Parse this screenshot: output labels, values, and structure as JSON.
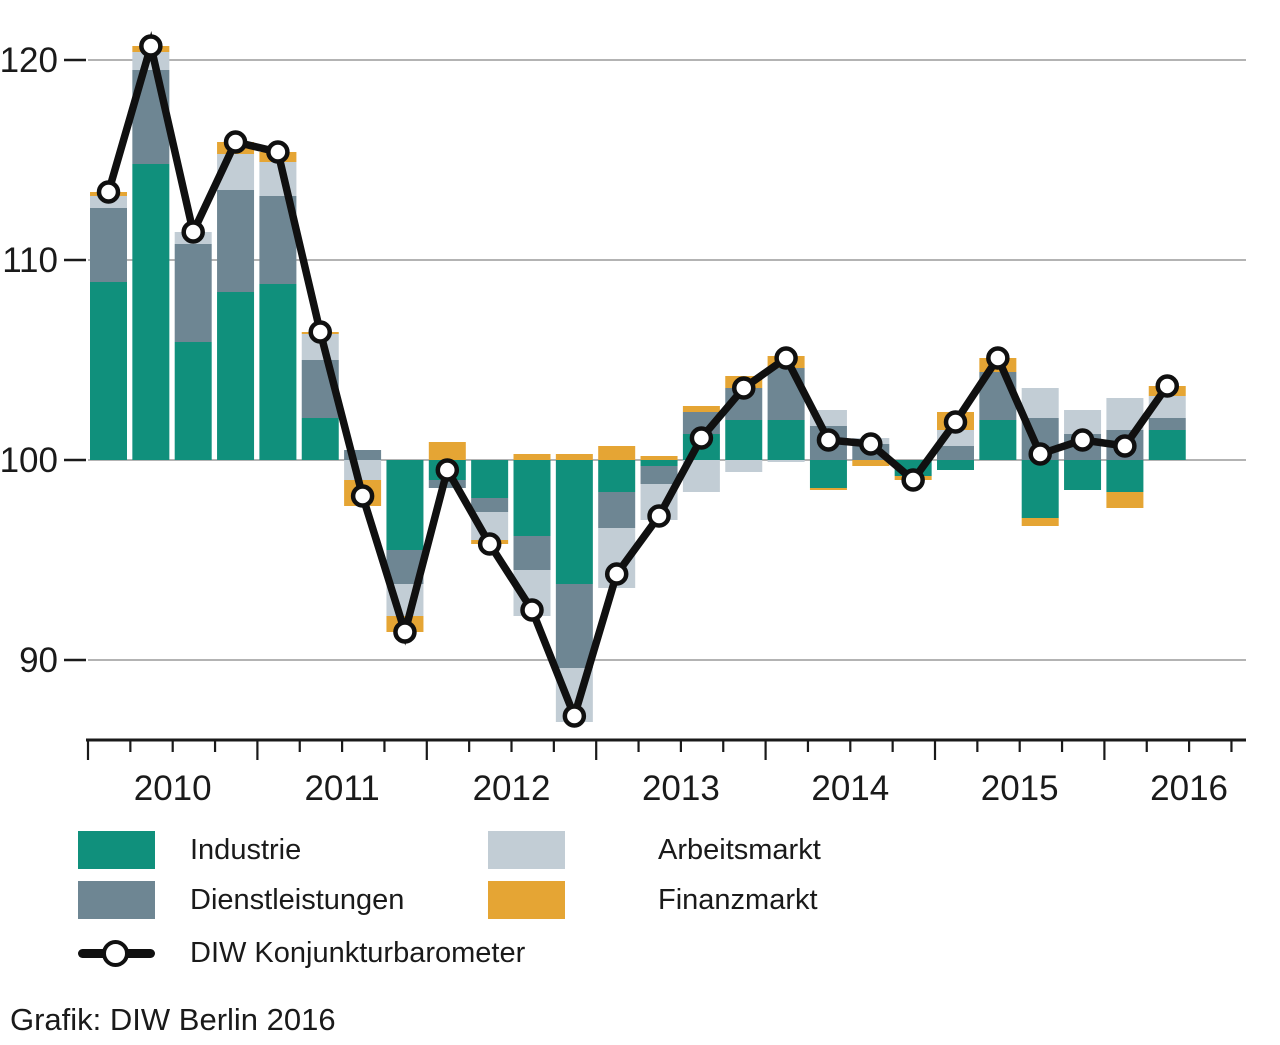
{
  "caption": "Grafik: DIW Berlin 2016",
  "colors": {
    "industrie": "#10907C",
    "dienstleistungen": "#6E8693",
    "arbeitsmarkt": "#C2CDD5",
    "finanzmarkt": "#E5A534",
    "line": "#101010",
    "gridline": "#9a9a9a",
    "axis": "#1a1a1a",
    "text": "#1a1a1a"
  },
  "legend": {
    "items": [
      {
        "label": "Industrie",
        "swatch": "industrie"
      },
      {
        "label": "Dienstleistungen",
        "swatch": "dienstleistungen"
      },
      {
        "label": "Arbeitsmarkt",
        "swatch": "arbeitsmarkt"
      },
      {
        "label": "Finanzmarkt",
        "swatch": "finanzmarkt"
      },
      {
        "label": "DIW Konjunkturbarometer",
        "swatch": "line-marker"
      }
    ]
  },
  "chart_data": {
    "type": "bar",
    "subtype": "stacked contribution bars around baseline 100 with overlaid line+markers",
    "baseline": 100,
    "ylim": [
      86,
      122
    ],
    "y_ticks": [
      90,
      100,
      110,
      120
    ],
    "x_tick_labels": [
      "2010",
      "2011",
      "2012",
      "2013",
      "2014",
      "2015",
      "2016"
    ],
    "grid": "horizontal gridlines at y ticks",
    "legend_position": "below chart, two columns",
    "categories": [
      "2010Q1",
      "2010Q2",
      "2010Q3",
      "2010Q4",
      "2011Q1",
      "2011Q2",
      "2011Q3",
      "2011Q4",
      "2012Q1",
      "2012Q2",
      "2012Q3",
      "2012Q4",
      "2013Q1",
      "2013Q2",
      "2013Q3",
      "2013Q4",
      "2014Q1",
      "2014Q2",
      "2014Q3",
      "2014Q4",
      "2015Q1",
      "2015Q2",
      "2015Q3",
      "2015Q4",
      "2016Q1",
      "2016Q2"
    ],
    "series": [
      {
        "name": "Industrie",
        "color_key": "industrie",
        "values": [
          8.9,
          14.8,
          5.9,
          8.4,
          8.8,
          2.1,
          0.0,
          -4.5,
          -1.0,
          -1.9,
          -3.8,
          -6.2,
          -1.6,
          -0.3,
          1.3,
          2.0,
          2.0,
          -1.4,
          0.0,
          -0.8,
          -0.5,
          2.0,
          -2.9,
          -1.5,
          -1.6,
          1.5
        ]
      },
      {
        "name": "Dienstleistungen",
        "color_key": "dienstleistungen",
        "values": [
          3.7,
          4.7,
          4.9,
          5.1,
          4.4,
          2.9,
          0.5,
          -1.7,
          -0.4,
          -0.7,
          -1.7,
          -4.2,
          -1.8,
          -0.9,
          1.1,
          1.6,
          2.6,
          1.7,
          0.8,
          0.0,
          0.7,
          2.4,
          2.1,
          1.3,
          1.5,
          0.6
        ]
      },
      {
        "name": "Arbeitsmarkt",
        "color_key": "arbeitsmarkt",
        "values": [
          0.6,
          0.9,
          0.6,
          1.8,
          1.7,
          1.3,
          -1.0,
          -1.6,
          0.0,
          -1.4,
          -2.3,
          -2.7,
          -3.0,
          -1.8,
          -1.6,
          -0.6,
          -0.1,
          0.8,
          0.3,
          0.0,
          0.8,
          0.0,
          1.5,
          1.2,
          1.6,
          1.1
        ]
      },
      {
        "name": "Finanzmarkt",
        "color_key": "finanzmarkt",
        "values": [
          0.2,
          0.3,
          0.0,
          0.6,
          0.5,
          0.1,
          -1.3,
          -0.8,
          0.9,
          -0.2,
          0.3,
          0.3,
          0.7,
          0.2,
          0.3,
          0.6,
          0.6,
          -0.1,
          -0.3,
          -0.2,
          0.9,
          0.7,
          -0.4,
          0.0,
          -0.8,
          0.5
        ]
      }
    ],
    "line_series": {
      "name": "DIW Konjunkturbarometer",
      "values": [
        113.4,
        120.7,
        111.4,
        115.9,
        115.4,
        106.4,
        98.2,
        91.4,
        99.5,
        95.8,
        92.5,
        87.2,
        94.3,
        97.2,
        101.1,
        103.6,
        105.1,
        101.0,
        100.8,
        99.0,
        101.9,
        105.1,
        100.3,
        101.0,
        100.7,
        103.7
      ]
    }
  }
}
